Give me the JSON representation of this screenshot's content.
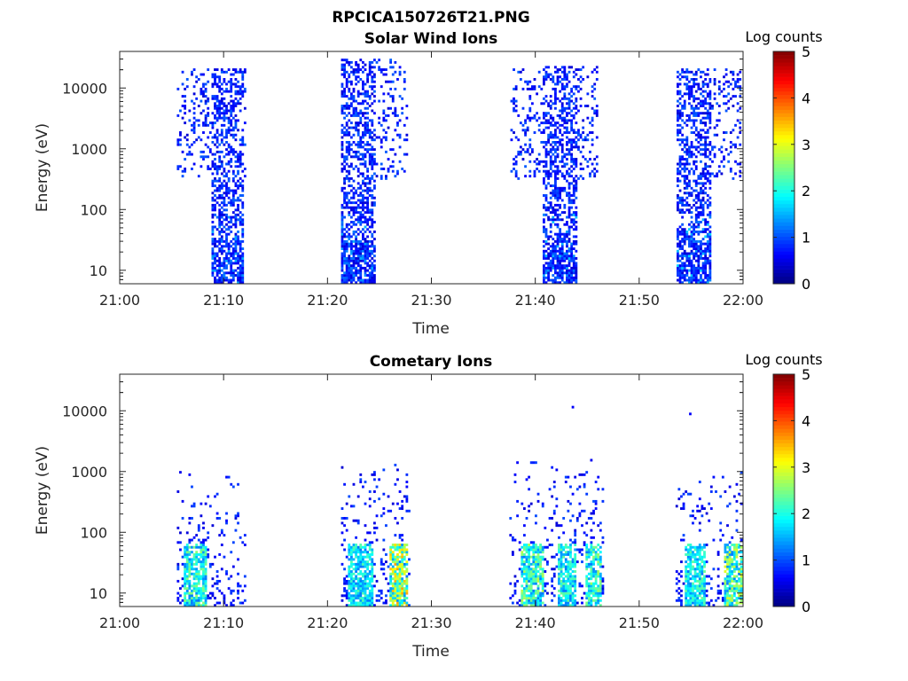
{
  "figure_title": "RPCICA150726T21.PNG",
  "chart_data": [
    {
      "type": "heatmap",
      "title": "Solar Wind Ions",
      "xlabel": "Time",
      "ylabel": "Energy (eV)",
      "xlim": [
        "21:00",
        "22:00"
      ],
      "xticks": [
        "21:00",
        "21:10",
        "21:20",
        "21:30",
        "21:40",
        "21:50",
        "22:00"
      ],
      "y_scale": "log",
      "ylim": [
        6,
        40000
      ],
      "yticks": [
        "10",
        "100",
        "1000",
        "10000"
      ],
      "colorbar": {
        "label": "Log counts",
        "range": [
          0,
          5
        ],
        "ticks": [
          "0",
          "1",
          "2",
          "3",
          "4",
          "5"
        ],
        "colormap": "jet"
      },
      "bursts": [
        {
          "start_min": 5.5,
          "end_min": 12.0,
          "core_start_min": 8.8,
          "core_end_min": 11.8,
          "emin_ev": 6,
          "emax_ev": 20000,
          "scatter_emin_ev": 300,
          "peak_log_counts": 1.5
        },
        {
          "start_min": 21.3,
          "end_min": 27.6,
          "core_start_min": 21.3,
          "core_end_min": 24.5,
          "emin_ev": 6,
          "emax_ev": 30000,
          "scatter_emin_ev": 300,
          "peak_log_counts": 1.5
        },
        {
          "start_min": 37.6,
          "end_min": 46.0,
          "core_start_min": 40.5,
          "core_end_min": 43.9,
          "emin_ev": 6,
          "emax_ev": 23000,
          "scatter_emin_ev": 300,
          "peak_log_counts": 1.6
        },
        {
          "start_min": 53.6,
          "end_min": 59.8,
          "core_start_min": 53.6,
          "core_end_min": 56.9,
          "emin_ev": 6,
          "emax_ev": 20000,
          "scatter_emin_ev": 300,
          "peak_log_counts": 1.7
        }
      ]
    },
    {
      "type": "heatmap",
      "title": "Cometary Ions",
      "xlabel": "Time",
      "ylabel": "Energy (eV)",
      "xlim": [
        "21:00",
        "22:00"
      ],
      "xticks": [
        "21:00",
        "21:10",
        "21:20",
        "21:30",
        "21:40",
        "21:50",
        "22:00"
      ],
      "y_scale": "log",
      "ylim": [
        6,
        40000
      ],
      "yticks": [
        "10",
        "100",
        "1000",
        "10000"
      ],
      "colorbar": {
        "label": "Log counts",
        "range": [
          0,
          5
        ],
        "ticks": [
          "0",
          "1",
          "2",
          "3",
          "4",
          "5"
        ],
        "colormap": "jet"
      },
      "bursts": [
        {
          "start_min": 5.5,
          "end_min": 12.0,
          "emax_ev": 1100,
          "bright": [
            {
              "start_min": 6.0,
              "end_min": 8.2,
              "peak_log_counts": 2.6
            }
          ]
        },
        {
          "start_min": 21.3,
          "end_min": 27.8,
          "emax_ev": 1300,
          "bright": [
            {
              "start_min": 21.8,
              "end_min": 24.2,
              "peak_log_counts": 2.3
            },
            {
              "start_min": 25.8,
              "end_min": 27.7,
              "peak_log_counts": 3.6
            }
          ]
        },
        {
          "start_min": 37.5,
          "end_min": 46.5,
          "emax_ev": 1500,
          "bright": [
            {
              "start_min": 38.6,
              "end_min": 40.8,
              "peak_log_counts": 2.8
            },
            {
              "start_min": 42.0,
              "end_min": 43.8,
              "peak_log_counts": 2.4
            },
            {
              "start_min": 44.8,
              "end_min": 46.2,
              "peak_log_counts": 2.7
            }
          ]
        },
        {
          "start_min": 53.5,
          "end_min": 59.9,
          "emax_ev": 1000,
          "bright": [
            {
              "start_min": 54.2,
              "end_min": 56.2,
              "peak_log_counts": 2.4
            },
            {
              "start_min": 58.0,
              "end_min": 59.9,
              "peak_log_counts": 3.0
            }
          ]
        }
      ],
      "isolated_points": [
        {
          "time_min": 43.5,
          "energy_ev": 11000
        },
        {
          "time_min": 54.8,
          "energy_ev": 8500
        }
      ]
    }
  ]
}
